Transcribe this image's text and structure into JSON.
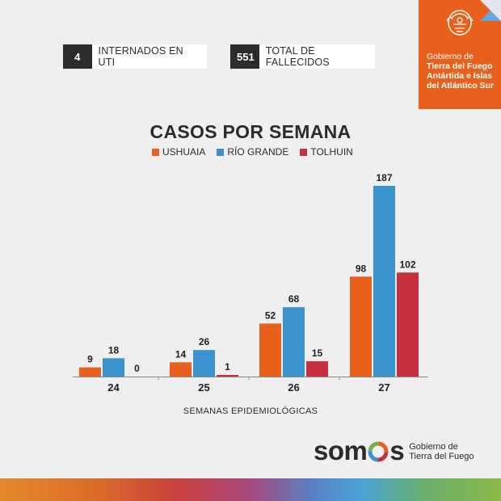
{
  "stats": [
    {
      "value": "4",
      "label": "INTERNADOS EN UTI"
    },
    {
      "value": "551",
      "label": "TOTAL DE FALLECIDOS"
    }
  ],
  "government": {
    "line1": "Gobierno de",
    "line2": "Tierra del Fuego",
    "line3": "Antártida e Islas",
    "line4": "del Atlántico Sur"
  },
  "footer": {
    "brand_pre": "som",
    "brand_post": "s",
    "gov_line1": "Gobierno de",
    "gov_line2": "Tierra del Fuego"
  },
  "colors": {
    "ushuaia": "#e8601c",
    "rio_grande": "#3a92cf",
    "tolhuin": "#c8303e"
  },
  "chart_data": {
    "type": "bar",
    "title": "CASOS POR SEMANA",
    "xlabel": "SEMANAS EPIDEMIOLÓGICAS",
    "ylabel": "",
    "categories": [
      "24",
      "25",
      "26",
      "27"
    ],
    "series": [
      {
        "name": "USHUAIA",
        "values": [
          9,
          14,
          52,
          98
        ]
      },
      {
        "name": "RÍO GRANDE",
        "values": [
          18,
          26,
          68,
          187
        ]
      },
      {
        "name": "TOLHUIN",
        "values": [
          0,
          1,
          15,
          102
        ]
      }
    ],
    "ylim": [
      0,
      190
    ],
    "grid": false,
    "legend": "top-center"
  }
}
